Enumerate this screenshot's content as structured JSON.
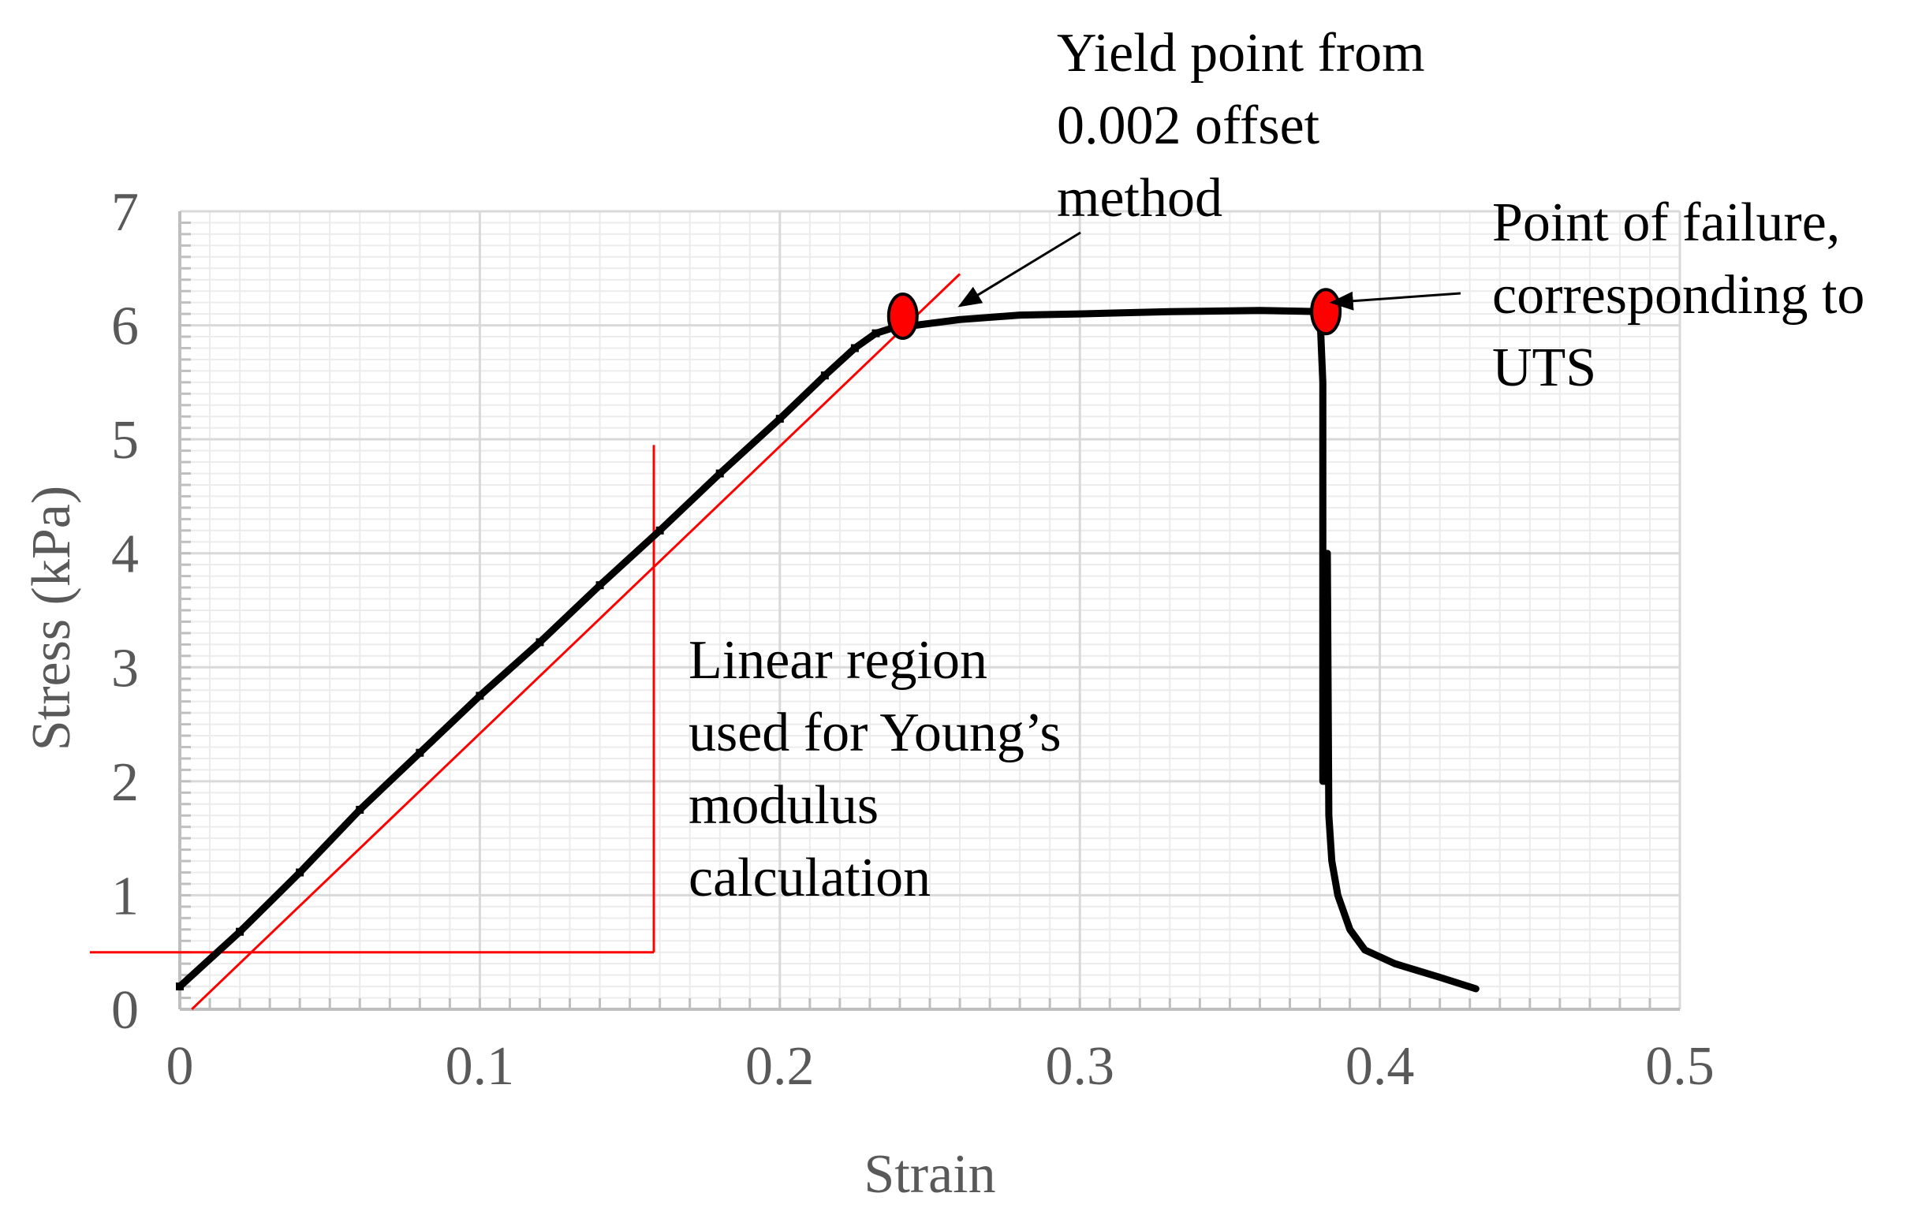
{
  "chart_data": {
    "type": "line",
    "title": "",
    "xlabel": "Strain",
    "ylabel": "Stress (kPa)",
    "xlim": [
      0,
      0.5
    ],
    "ylim": [
      0,
      7
    ],
    "x_ticks": [
      0,
      0.1,
      0.2,
      0.3,
      0.4,
      0.5
    ],
    "x_tick_labels": [
      "0",
      "0.1",
      "0.2",
      "0.3",
      "0.4",
      "0.5"
    ],
    "y_ticks": [
      0,
      1,
      2,
      3,
      4,
      5,
      6,
      7
    ],
    "y_tick_labels": [
      "0",
      "1",
      "2",
      "3",
      "4",
      "5",
      "6",
      "7"
    ],
    "grid": true,
    "series": [
      {
        "name": "Stress-strain curve",
        "color": "#000000",
        "x": [
          0,
          0.02,
          0.04,
          0.06,
          0.08,
          0.1,
          0.12,
          0.14,
          0.16,
          0.18,
          0.2,
          0.215,
          0.225,
          0.232,
          0.238,
          0.245,
          0.26,
          0.28,
          0.3,
          0.33,
          0.36,
          0.38,
          0.381,
          0.381,
          0.382,
          0.3825,
          0.383,
          0.384,
          0.386,
          0.39,
          0.395,
          0.405,
          0.42,
          0.432
        ],
        "y": [
          0.2,
          0.68,
          1.2,
          1.75,
          2.25,
          2.75,
          3.22,
          3.72,
          4.2,
          4.7,
          5.18,
          5.56,
          5.8,
          5.93,
          5.98,
          6.0,
          6.05,
          6.09,
          6.1,
          6.12,
          6.13,
          6.12,
          5.5,
          2.0,
          2.0,
          4.0,
          1.7,
          1.3,
          1.0,
          0.7,
          0.52,
          0.4,
          0.28,
          0.18
        ]
      }
    ],
    "reference_lines": [
      {
        "name": "0.002 offset line",
        "color": "#ff0000",
        "x": [
          0.004,
          0.26
        ],
        "y": [
          0.0,
          6.45
        ]
      },
      {
        "name": "linear region horizontal bound",
        "color": "#ff0000",
        "x": [
          -0.03,
          0.158
        ],
        "y": [
          0.5,
          0.5
        ]
      },
      {
        "name": "linear region vertical bound",
        "color": "#ff0000",
        "x": [
          0.158,
          0.158
        ],
        "y": [
          0.5,
          4.95
        ]
      }
    ],
    "markers": [
      {
        "name": "yield point",
        "color": "#ff0000",
        "x": 0.241,
        "y": 6.08
      },
      {
        "name": "point of failure",
        "color": "#ff0000",
        "x": 0.382,
        "y": 6.12
      }
    ],
    "annotations": [
      {
        "id": "yield",
        "lines": [
          "Yield point from",
          "0.002 offset",
          "method"
        ],
        "arrow_to": [
          0.26,
          6.17
        ]
      },
      {
        "id": "failure",
        "lines": [
          "Point of failure,",
          "corresponding to",
          "UTS"
        ],
        "arrow_to": [
          0.384,
          6.2
        ]
      },
      {
        "id": "linear",
        "lines": [
          "Linear region",
          "used for Young’s",
          "modulus",
          "calculation"
        ]
      }
    ]
  }
}
